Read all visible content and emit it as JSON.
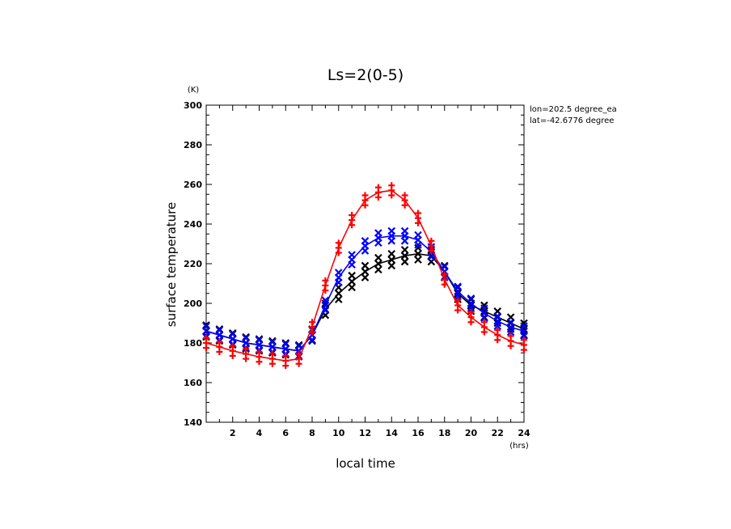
{
  "chart_data": {
    "type": "line",
    "title": "Ls=2(0-5)",
    "xlabel": "local time",
    "ylabel": "surface temperature",
    "x_unit": "(hrs)",
    "y_unit": "(K)",
    "xlim": [
      0,
      24
    ],
    "ylim": [
      140,
      300
    ],
    "x_ticks": [
      2,
      4,
      6,
      8,
      10,
      12,
      14,
      16,
      18,
      20,
      22,
      24
    ],
    "y_ticks": [
      140,
      160,
      180,
      200,
      220,
      240,
      260,
      280,
      300
    ],
    "grid": false,
    "annotations": [
      "lon=202.5 degree_ea",
      "lat=-42.6776 degree"
    ],
    "x": [
      0,
      1,
      2,
      3,
      4,
      5,
      6,
      7,
      8,
      9,
      10,
      11,
      12,
      13,
      14,
      15,
      16,
      17,
      18,
      19,
      20,
      21,
      22,
      23,
      24
    ],
    "series": [
      {
        "color": "#000000",
        "marker": "x",
        "values": [
          186,
          184,
          182,
          180,
          179,
          178,
          177,
          176,
          184,
          197,
          205,
          211,
          216,
          220,
          222,
          224,
          225,
          224,
          216,
          205,
          199,
          196,
          193,
          190,
          187
        ],
        "spread": 3
      },
      {
        "color": "#0000ff",
        "marker": "x",
        "values": [
          186,
          184,
          182,
          180,
          179,
          178,
          177,
          176,
          184,
          199,
          213,
          222,
          229,
          233,
          234,
          234,
          232,
          226,
          216,
          206,
          200,
          195,
          191,
          188,
          186
        ],
        "spread": 2.5
      },
      {
        "color": "#ff0000",
        "marker": "+",
        "values": [
          180,
          178,
          176,
          174.5,
          173,
          172,
          171,
          172,
          188,
          209,
          228,
          242,
          252,
          256,
          257,
          252,
          243,
          229,
          212,
          199,
          193,
          188,
          184,
          181,
          179
        ],
        "spread": 2.5
      }
    ]
  }
}
